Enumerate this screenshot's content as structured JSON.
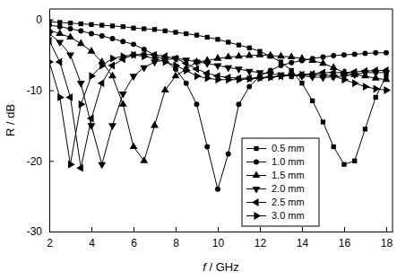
{
  "chart_data": {
    "type": "line",
    "x_label": "f / GHz",
    "y_label": "R / dB",
    "x": [
      2,
      2.5,
      3,
      3.5,
      4,
      4.5,
      5,
      5.5,
      6,
      6.5,
      7,
      7.5,
      8,
      8.5,
      9,
      9.5,
      10,
      10.5,
      11,
      11.5,
      12,
      12.5,
      13,
      13.5,
      14,
      14.5,
      15,
      15.5,
      16,
      16.5,
      17,
      17.5,
      18
    ],
    "series": [
      {
        "name": "0.5 mm",
        "color": "#000000",
        "marker": "square",
        "values": [
          -0.3,
          -0.4,
          -0.5,
          -0.6,
          -0.7,
          -0.8,
          -0.9,
          -1.0,
          -1.2,
          -1.3,
          -1.4,
          -1.6,
          -1.8,
          -2.0,
          -2.2,
          -2.5,
          -2.8,
          -3.2,
          -3.6,
          -4.0,
          -4.5,
          -5.2,
          -6.0,
          -7.2,
          -9.0,
          -11.5,
          -14.5,
          -18.0,
          -20.5,
          -20.0,
          -15.5,
          -11.0,
          -8.0
        ]
      },
      {
        "name": "1.0 mm",
        "color": "#000000",
        "marker": "circle",
        "values": [
          -0.8,
          -1.0,
          -1.3,
          -1.6,
          -2.0,
          -2.3,
          -2.7,
          -3.1,
          -3.5,
          -4.2,
          -5.0,
          -5.8,
          -7.0,
          -9.0,
          -12.0,
          -18.0,
          -24.0,
          -19.0,
          -12.0,
          -9.5,
          -8.0,
          -7.2,
          -6.5,
          -6.1,
          -5.8,
          -5.5,
          -5.3,
          -5.1,
          -5.0,
          -4.9,
          -4.8,
          -4.7,
          -4.7
        ]
      },
      {
        "name": "1.5 mm",
        "color": "#000000",
        "marker": "triangle-up",
        "values": [
          -1.5,
          -2.0,
          -2.5,
          -3.4,
          -4.5,
          -6.0,
          -8.0,
          -12.0,
          -18.0,
          -20.0,
          -15.0,
          -10.0,
          -8.0,
          -7.0,
          -6.0,
          -5.8,
          -5.5,
          -5.3,
          -5.2,
          -5.1,
          -5.0,
          -5.1,
          -5.2,
          -5.3,
          -5.5,
          -5.8,
          -6.2,
          -6.8,
          -7.5,
          -7.8,
          -8.0,
          -8.3,
          -8.5
        ]
      },
      {
        "name": "2.0 mm",
        "color": "#000000",
        "marker": "triangle-down",
        "values": [
          -2.0,
          -3.2,
          -5.0,
          -9.0,
          -15.0,
          -20.5,
          -15.0,
          -10.5,
          -8.0,
          -6.8,
          -6.0,
          -5.7,
          -5.5,
          -5.7,
          -6.0,
          -6.2,
          -6.5,
          -6.8,
          -7.0,
          -7.3,
          -7.5,
          -7.7,
          -7.8,
          -7.9,
          -8.0,
          -8.1,
          -8.2,
          -8.1,
          -8.0,
          -7.8,
          -7.5,
          -7.5,
          -7.5
        ]
      },
      {
        "name": "2.5 mm",
        "color": "#000000",
        "marker": "triangle-left",
        "values": [
          -3.0,
          -6.0,
          -11.0,
          -21.0,
          -14.0,
          -9.0,
          -6.5,
          -5.6,
          -5.0,
          -4.9,
          -5.0,
          -5.2,
          -5.5,
          -6.2,
          -7.0,
          -7.6,
          -8.0,
          -8.2,
          -8.3,
          -8.3,
          -8.2,
          -8.1,
          -8.0,
          -7.9,
          -7.8,
          -7.7,
          -7.5,
          -7.5,
          -7.5,
          -7.4,
          -7.3,
          -7.2,
          -7.2
        ]
      },
      {
        "name": "3.0 mm",
        "color": "#000000",
        "marker": "triangle-right",
        "values": [
          -6.0,
          -11.0,
          -20.5,
          -12.0,
          -8.0,
          -6.5,
          -5.5,
          -5.2,
          -5.0,
          -5.2,
          -5.5,
          -6.0,
          -6.5,
          -7.2,
          -8.0,
          -8.3,
          -8.5,
          -8.5,
          -8.5,
          -8.4,
          -8.3,
          -8.2,
          -8.0,
          -7.9,
          -7.8,
          -7.8,
          -7.8,
          -8.0,
          -8.5,
          -9.0,
          -9.5,
          -9.8,
          -10.0
        ]
      }
    ],
    "xlim": [
      2,
      18.3
    ],
    "xticks": [
      2,
      4,
      6,
      8,
      10,
      12,
      14,
      16,
      18
    ],
    "ylim": [
      -30,
      1.5
    ],
    "yticks": [
      -30,
      -20,
      -10,
      0
    ],
    "grid": false,
    "legend": "lower center"
  }
}
